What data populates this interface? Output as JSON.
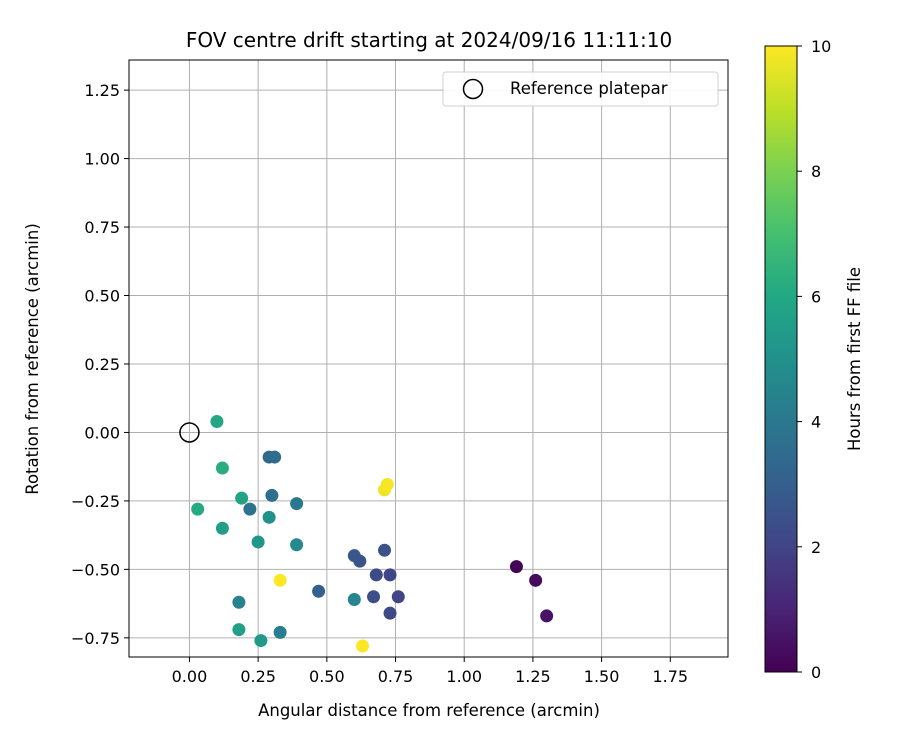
{
  "chart_data": {
    "type": "scatter",
    "title": "FOV centre drift starting at 2024/09/16 11:11:10",
    "xlabel": "Angular distance from reference (arcmin)",
    "ylabel": "Rotation from reference (arcmin)",
    "xlim": [
      -0.22,
      1.96
    ],
    "ylim": [
      -0.82,
      1.36
    ],
    "xticks": [
      "0.00",
      "0.25",
      "0.50",
      "0.75",
      "1.00",
      "1.25",
      "1.50",
      "1.75"
    ],
    "xtick_values": [
      0,
      0.25,
      0.5,
      0.75,
      1.0,
      1.25,
      1.5,
      1.75
    ],
    "yticks": [
      "−0.75",
      "−0.50",
      "−0.25",
      "0.00",
      "0.25",
      "0.50",
      "0.75",
      "1.00",
      "1.25"
    ],
    "ytick_values": [
      -0.75,
      -0.5,
      -0.25,
      0,
      0.25,
      0.5,
      0.75,
      1.0,
      1.25
    ],
    "grid": true,
    "legend": {
      "placement": "top-right",
      "entries": [
        {
          "label": "Reference platepar",
          "marker": "open-circle"
        }
      ]
    },
    "reference_point": {
      "x": 0.0,
      "y": 0.0
    },
    "colorbar": {
      "label": "Hours from first FF file",
      "min": 0,
      "max": 10,
      "ticks": [
        "0",
        "2",
        "4",
        "6",
        "8",
        "10"
      ],
      "tick_values": [
        0,
        2,
        4,
        6,
        8,
        10
      ],
      "colormap": "viridis"
    },
    "points": [
      {
        "x": 1.19,
        "y": -0.49,
        "hours": 0.1
      },
      {
        "x": 1.26,
        "y": -0.54,
        "hours": 0.3
      },
      {
        "x": 1.3,
        "y": -0.67,
        "hours": 0.5
      },
      {
        "x": 0.76,
        "y": -0.6,
        "hours": 2.0
      },
      {
        "x": 0.73,
        "y": -0.52,
        "hours": 2.1
      },
      {
        "x": 0.73,
        "y": -0.66,
        "hours": 2.2
      },
      {
        "x": 0.68,
        "y": -0.52,
        "hours": 2.3
      },
      {
        "x": 0.67,
        "y": -0.6,
        "hours": 2.4
      },
      {
        "x": 0.71,
        "y": -0.43,
        "hours": 2.5
      },
      {
        "x": 0.62,
        "y": -0.47,
        "hours": 2.6
      },
      {
        "x": 0.6,
        "y": -0.45,
        "hours": 2.7
      },
      {
        "x": 0.47,
        "y": -0.58,
        "hours": 3.0
      },
      {
        "x": 0.29,
        "y": -0.09,
        "hours": 3.4
      },
      {
        "x": 0.31,
        "y": -0.09,
        "hours": 3.5
      },
      {
        "x": 0.3,
        "y": -0.23,
        "hours": 3.6
      },
      {
        "x": 0.22,
        "y": -0.28,
        "hours": 3.8
      },
      {
        "x": 0.39,
        "y": -0.26,
        "hours": 4.0
      },
      {
        "x": 0.33,
        "y": -0.73,
        "hours": 4.2
      },
      {
        "x": 0.18,
        "y": -0.62,
        "hours": 4.4
      },
      {
        "x": 0.6,
        "y": -0.61,
        "hours": 4.5
      },
      {
        "x": 0.39,
        "y": -0.41,
        "hours": 4.7
      },
      {
        "x": 0.29,
        "y": -0.31,
        "hours": 5.0
      },
      {
        "x": 0.25,
        "y": -0.4,
        "hours": 5.2
      },
      {
        "x": 0.26,
        "y": -0.76,
        "hours": 5.4
      },
      {
        "x": 0.12,
        "y": -0.35,
        "hours": 5.5
      },
      {
        "x": 0.18,
        "y": -0.72,
        "hours": 5.6
      },
      {
        "x": 0.19,
        "y": -0.24,
        "hours": 5.8
      },
      {
        "x": 0.1,
        "y": 0.04,
        "hours": 5.9
      },
      {
        "x": 0.03,
        "y": -0.28,
        "hours": 6.1
      },
      {
        "x": 0.12,
        "y": -0.13,
        "hours": 6.2
      },
      {
        "x": 0.71,
        "y": -0.21,
        "hours": 9.8
      },
      {
        "x": 0.72,
        "y": -0.19,
        "hours": 9.9
      },
      {
        "x": 0.33,
        "y": -0.54,
        "hours": 10.0
      },
      {
        "x": 0.63,
        "y": -0.78,
        "hours": 10.0
      }
    ]
  }
}
